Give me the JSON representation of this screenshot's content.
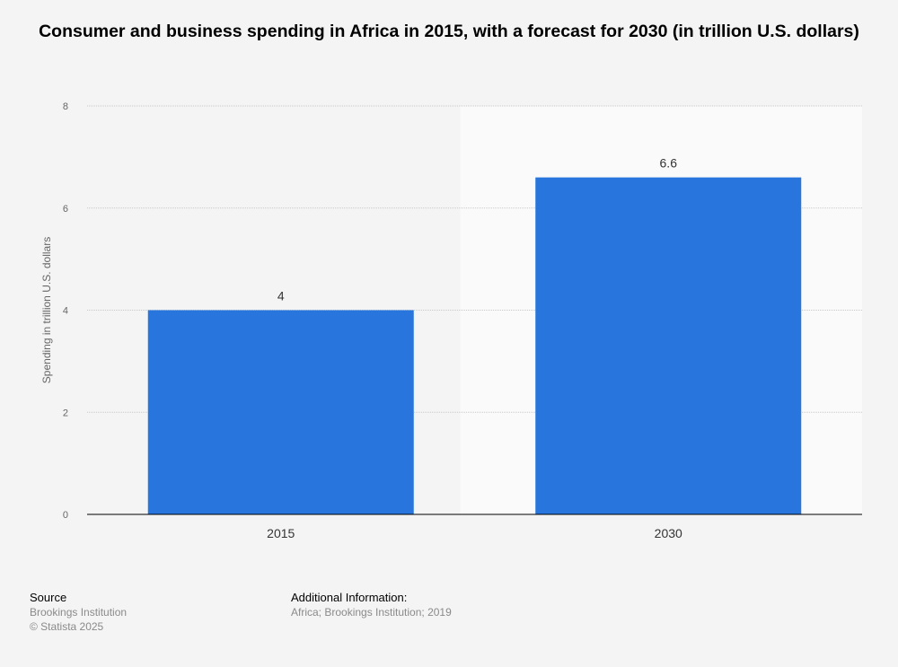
{
  "chart_data": {
    "type": "bar",
    "title": "Consumer and business spending in Africa in 2015, with a forecast for 2030 (in trillion U.S. dollars)",
    "categories": [
      "2015",
      "2030"
    ],
    "values": [
      4,
      6.6
    ],
    "data_labels": [
      "4",
      "6.6"
    ],
    "ylabel": "Spending in trillion U.S. dollars",
    "xlabel": "",
    "ylim": [
      0,
      8
    ],
    "yticks": [
      "0",
      "2",
      "4",
      "6",
      "8"
    ],
    "grid": true,
    "forecast_highlight_category": "2030",
    "bar_color": "#2876dd"
  },
  "footer": {
    "source_heading": "Source",
    "source": "Brookings Institution",
    "copyright": "© Statista 2025",
    "additional_heading": "Additional Information:",
    "additional": "Africa; Brookings Institution; 2019"
  }
}
